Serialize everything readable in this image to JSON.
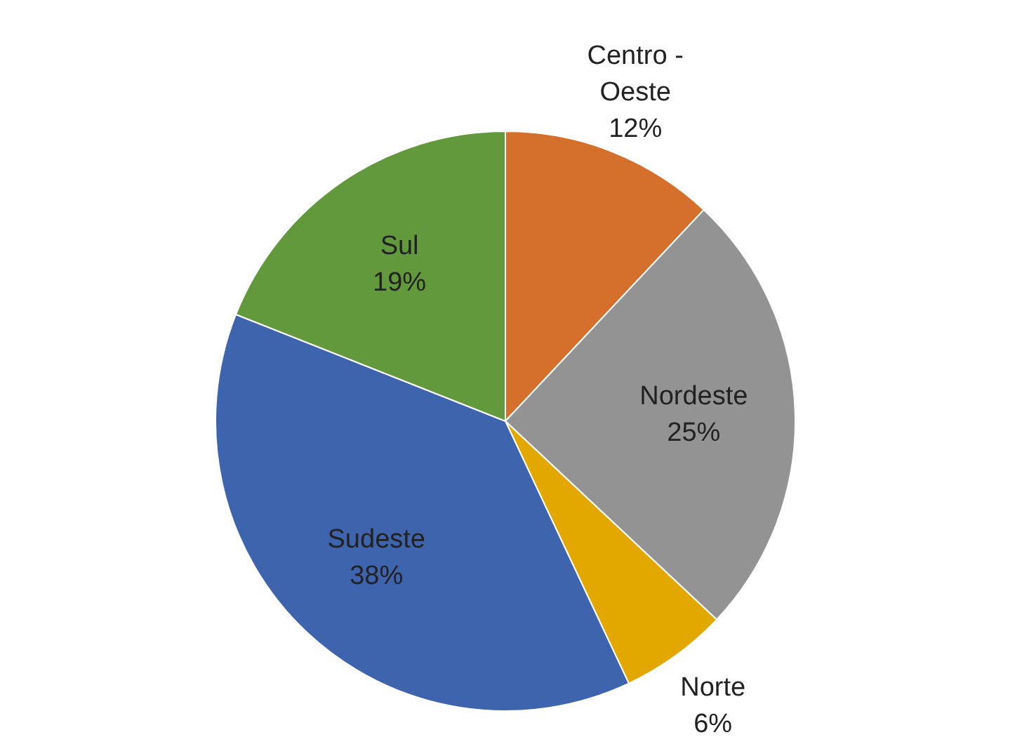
{
  "chart_data": {
    "type": "pie",
    "categories": [
      "Centro - Oeste",
      "Nordeste",
      "Norte",
      "Sudeste",
      "Sul"
    ],
    "values": [
      12,
      25,
      6,
      38,
      19
    ],
    "value_labels": [
      "12%",
      "25%",
      "6%",
      "38%",
      "19%"
    ],
    "colors": [
      "#d4702b",
      "#939393",
      "#e2a800",
      "#3d64ad",
      "#63993d"
    ],
    "legend": false
  }
}
